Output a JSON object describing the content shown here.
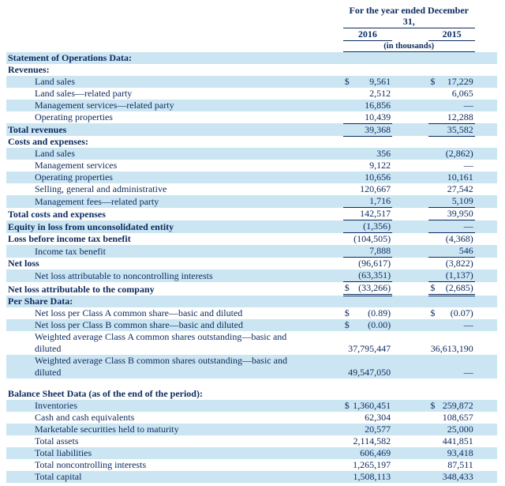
{
  "header": {
    "period_title": "For the year ended December 31,",
    "years": [
      "2016",
      "2015"
    ],
    "units_note": "(in thousands)"
  },
  "colors": {
    "row_shade": "#cce5f2",
    "text": "#0a2a5e"
  },
  "rows": [
    {
      "label": "Statement of Operations Data:",
      "bold": true,
      "indent": 0,
      "shade": true
    },
    {
      "label": "Revenues:",
      "bold": true,
      "indent": 0,
      "shade": false
    },
    {
      "label": "Land sales",
      "indent": 1,
      "shade": true,
      "d1": "$",
      "v1": "9,561",
      "d2": "$",
      "v2": "17,229"
    },
    {
      "label": "Land sales—related party",
      "indent": 1,
      "shade": false,
      "v1": "2,512",
      "v2": "6,065"
    },
    {
      "label": "Management services—related party",
      "indent": 1,
      "shade": true,
      "v1": "16,856",
      "v2": "—"
    },
    {
      "label": "Operating properties",
      "indent": 1,
      "shade": false,
      "v1": "10,439",
      "v2": "12,288",
      "u": 1
    },
    {
      "label": "Total revenues",
      "bold": true,
      "indent": 0,
      "shade": true,
      "v1": "39,368",
      "v2": "35,582",
      "u": 1
    },
    {
      "label": "Costs and expenses:",
      "bold": true,
      "indent": 0,
      "shade": false
    },
    {
      "label": "Land sales",
      "indent": 1,
      "shade": true,
      "v1": "356",
      "v2": "(2,862)"
    },
    {
      "label": "Management services",
      "indent": 1,
      "shade": false,
      "v1": "9,122",
      "v2": "—"
    },
    {
      "label": "Operating properties",
      "indent": 1,
      "shade": true,
      "v1": "10,656",
      "v2": "10,161"
    },
    {
      "label": "Selling, general and administrative",
      "indent": 1,
      "shade": false,
      "v1": "120,667",
      "v2": "27,542"
    },
    {
      "label": "Management fees—related party",
      "indent": 1,
      "shade": true,
      "v1": "1,716",
      "v2": "5,109",
      "u": 1
    },
    {
      "label": "Total costs and expenses",
      "bold": true,
      "indent": 0,
      "shade": false,
      "v1": "142,517",
      "v2": "39,950",
      "u": 1
    },
    {
      "label": "Equity in loss from unconsolidated entity",
      "bold": true,
      "indent": 0,
      "shade": true,
      "v1": "(1,356)",
      "v2": "—",
      "u": 1
    },
    {
      "label": "Loss before income tax benefit",
      "bold": true,
      "indent": 0,
      "shade": false,
      "v1": "(104,505)",
      "v2": "(4,368)"
    },
    {
      "label": "Income tax benefit",
      "indent": 1,
      "shade": true,
      "v1": "7,888",
      "v2": "546",
      "u": 1
    },
    {
      "label": "Net loss",
      "bold": true,
      "indent": 0,
      "shade": false,
      "v1": "(96,617)",
      "v2": "(3,822)"
    },
    {
      "label": "Net loss attributable to noncontrolling interests",
      "indent": 1,
      "shade": true,
      "v1": "(63,351)",
      "v2": "(1,137)",
      "u": 1
    },
    {
      "label": "Net loss attributable to the company",
      "bold": true,
      "indent": 0,
      "shade": false,
      "d1": "$",
      "v1": "(33,266)",
      "d2": "$",
      "v2": "(2,685)",
      "u": 2
    },
    {
      "label": "Per Share Data:",
      "bold": true,
      "indent": 0,
      "shade": true
    },
    {
      "label": "Net loss per Class A common share—basic and diluted",
      "indent": 1,
      "shade": false,
      "d1": "$",
      "v1": "(0.89)",
      "d2": "$",
      "v2": "(0.07)"
    },
    {
      "label": "Net loss per Class B common share—basic and diluted",
      "indent": 1,
      "shade": true,
      "d1": "$",
      "v1": "(0.00)",
      "v2": "—"
    },
    {
      "label": "Weighted average Class A common shares outstanding—basic and diluted",
      "indent": 1,
      "shade": false,
      "v1": "37,795,447",
      "v2": "36,613,190"
    },
    {
      "label": "Weighted average Class B common shares outstanding—basic and diluted",
      "indent": 1,
      "shade": true,
      "v1": "49,547,050",
      "v2": "—"
    },
    {
      "label": "",
      "spacer": true
    },
    {
      "label": "Balance Sheet Data (as of the end of the period):",
      "bold": true,
      "indent": 0,
      "shade": false
    },
    {
      "label": "Inventories",
      "indent": 1,
      "shade": true,
      "d1": "$",
      "v1": "1,360,451",
      "d2": "$",
      "v2": "259,872"
    },
    {
      "label": "Cash and cash equivalents",
      "indent": 1,
      "shade": false,
      "v1": "62,304",
      "v2": "108,657"
    },
    {
      "label": "Marketable securities held to maturity",
      "indent": 1,
      "shade": true,
      "v1": "20,577",
      "v2": "25,000"
    },
    {
      "label": "Total assets",
      "indent": 1,
      "shade": false,
      "v1": "2,114,582",
      "v2": "441,851"
    },
    {
      "label": "Total liabilities",
      "indent": 1,
      "shade": true,
      "v1": "606,469",
      "v2": "93,418"
    },
    {
      "label": "Total noncontrolling interests",
      "indent": 1,
      "shade": false,
      "v1": "1,265,197",
      "v2": "87,511"
    },
    {
      "label": "Total capital",
      "indent": 1,
      "shade": true,
      "v1": "1,508,113",
      "v2": "348,433"
    }
  ]
}
